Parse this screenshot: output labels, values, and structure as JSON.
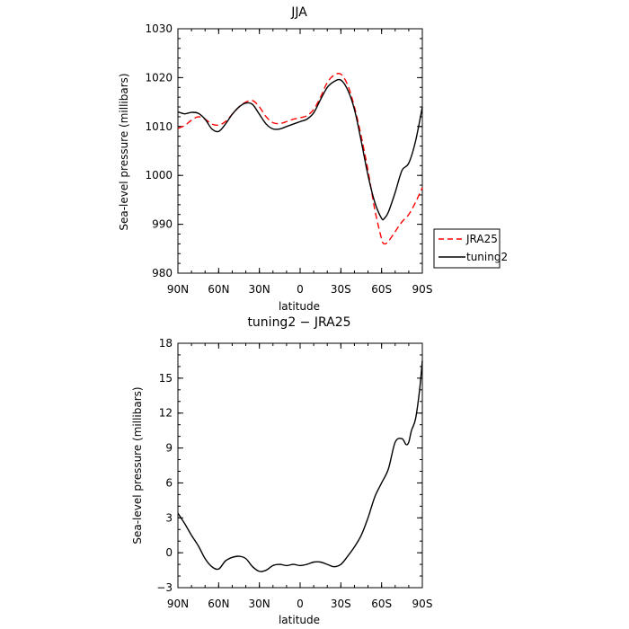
{
  "chart_data": [
    {
      "type": "line",
      "title": "JJA",
      "xlabel": "latitude",
      "ylabel": "Sea-level pressure (millibars)",
      "xlim": [
        90,
        -90
      ],
      "ylim": [
        980,
        1030
      ],
      "xticks": [
        "90N",
        "60N",
        "30N",
        "0",
        "30S",
        "60S",
        "90S"
      ],
      "yticks": [
        "980",
        "990",
        "1000",
        "1010",
        "1020",
        "1030"
      ],
      "legend_position": "right",
      "series": [
        {
          "name": "JRA25",
          "color": "#ff0000",
          "dash": "dashed",
          "x": [
            90,
            85,
            80,
            75,
            70,
            65,
            60,
            55,
            50,
            45,
            40,
            35,
            30,
            25,
            20,
            15,
            10,
            5,
            0,
            -5,
            -10,
            -15,
            -20,
            -25,
            -30,
            -35,
            -40,
            -45,
            -50,
            -55,
            -60,
            -62,
            -65,
            -70,
            -75,
            -80,
            -85,
            -90
          ],
          "y": [
            1009.6,
            1010.2,
            1011.3,
            1012.0,
            1011.5,
            1010.5,
            1010.3,
            1011.0,
            1012.5,
            1014.0,
            1015.0,
            1015.3,
            1014.0,
            1012.0,
            1010.8,
            1010.6,
            1011.0,
            1011.5,
            1011.8,
            1012.2,
            1013.5,
            1016.0,
            1019.0,
            1020.5,
            1020.7,
            1018.5,
            1014.0,
            1008.0,
            1001.0,
            993.0,
            987.0,
            986.0,
            986.5,
            988.5,
            990.5,
            992.0,
            994.5,
            997.5
          ]
        },
        {
          "name": "tuning2",
          "color": "#000000",
          "dash": "solid",
          "x": [
            90,
            85,
            80,
            75,
            70,
            65,
            60,
            55,
            50,
            45,
            40,
            35,
            30,
            25,
            20,
            15,
            10,
            5,
            0,
            -5,
            -10,
            -15,
            -20,
            -25,
            -30,
            -35,
            -40,
            -45,
            -50,
            -55,
            -60,
            -62,
            -65,
            -70,
            -75,
            -80,
            -85,
            -90
          ],
          "y": [
            1013.0,
            1012.6,
            1012.9,
            1012.7,
            1011.5,
            1009.5,
            1009.0,
            1010.5,
            1012.5,
            1014.0,
            1014.8,
            1014.5,
            1012.5,
            1010.5,
            1009.5,
            1009.5,
            1010.0,
            1010.5,
            1011.0,
            1011.5,
            1012.8,
            1015.5,
            1018.0,
            1019.2,
            1019.5,
            1017.5,
            1013.5,
            1007.0,
            1000.0,
            994.5,
            991.2,
            991.2,
            992.5,
            996.5,
            1001.0,
            1002.5,
            1007.0,
            1014.0
          ]
        }
      ]
    },
    {
      "type": "line",
      "title": "tuning2 − JRA25",
      "xlabel": "latitude",
      "ylabel": "Sea-level pressure (millibars)",
      "xlim": [
        90,
        -90
      ],
      "ylim": [
        -3,
        18
      ],
      "xticks": [
        "90N",
        "60N",
        "30N",
        "0",
        "30S",
        "60S",
        "90S"
      ],
      "yticks": [
        "−3",
        "0",
        "3",
        "6",
        "9",
        "12",
        "15",
        "18"
      ],
      "series": [
        {
          "color": "#000000",
          "dash": "solid",
          "x": [
            90,
            85,
            80,
            75,
            70,
            65,
            60,
            55,
            50,
            45,
            40,
            35,
            30,
            25,
            20,
            15,
            10,
            5,
            0,
            -5,
            -10,
            -15,
            -20,
            -25,
            -30,
            -35,
            -40,
            -45,
            -50,
            -55,
            -60,
            -65,
            -70,
            -75,
            -78,
            -80,
            -82,
            -85,
            -88,
            -90
          ],
          "y": [
            3.4,
            2.5,
            1.5,
            0.6,
            -0.5,
            -1.2,
            -1.4,
            -0.7,
            -0.4,
            -0.3,
            -0.5,
            -1.2,
            -1.6,
            -1.5,
            -1.1,
            -1.0,
            -1.1,
            -1.0,
            -1.1,
            -1.0,
            -0.8,
            -0.8,
            -1.0,
            -1.2,
            -1.0,
            -0.3,
            0.5,
            1.5,
            3.0,
            4.8,
            6.0,
            7.2,
            9.5,
            9.8,
            9.3,
            9.5,
            10.5,
            11.5,
            14.0,
            16.5
          ]
        }
      ]
    }
  ]
}
